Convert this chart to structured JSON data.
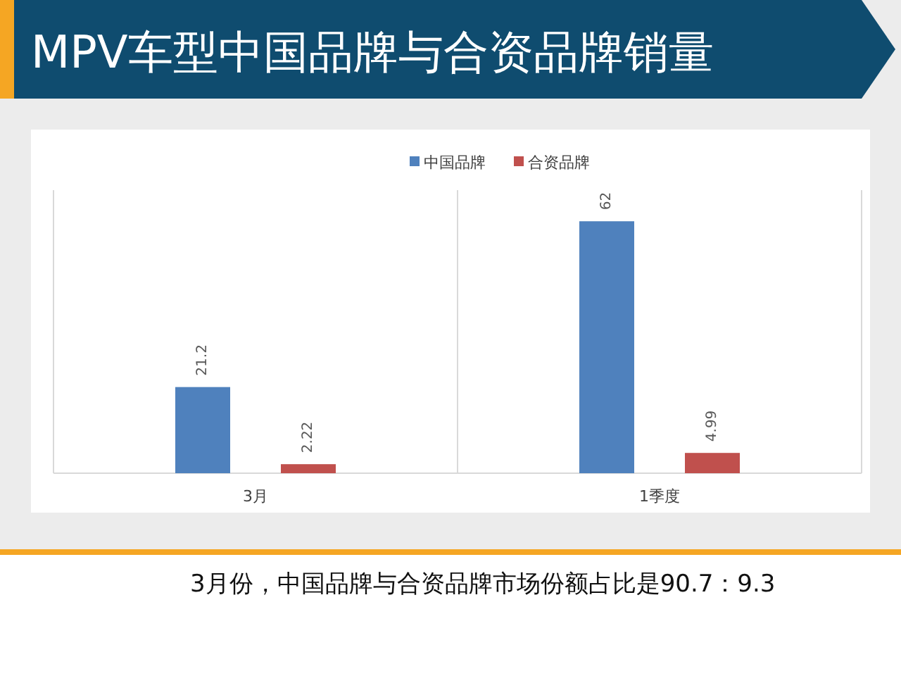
{
  "chart_data": {
    "type": "bar",
    "title": "MPV车型中国品牌与合资品牌销量",
    "categories": [
      "3月",
      "1季度"
    ],
    "series": [
      {
        "name": "中国品牌",
        "color": "#4f81bd",
        "values": [
          21.2,
          62
        ]
      },
      {
        "name": "合资品牌",
        "color": "#c0504d",
        "values": [
          2.22,
          4.99
        ]
      }
    ],
    "data_labels": true,
    "legend": "top",
    "annotations": [
      "3月份，中国品牌与合资品牌市场份额占比是90.7：9.3"
    ]
  }
}
